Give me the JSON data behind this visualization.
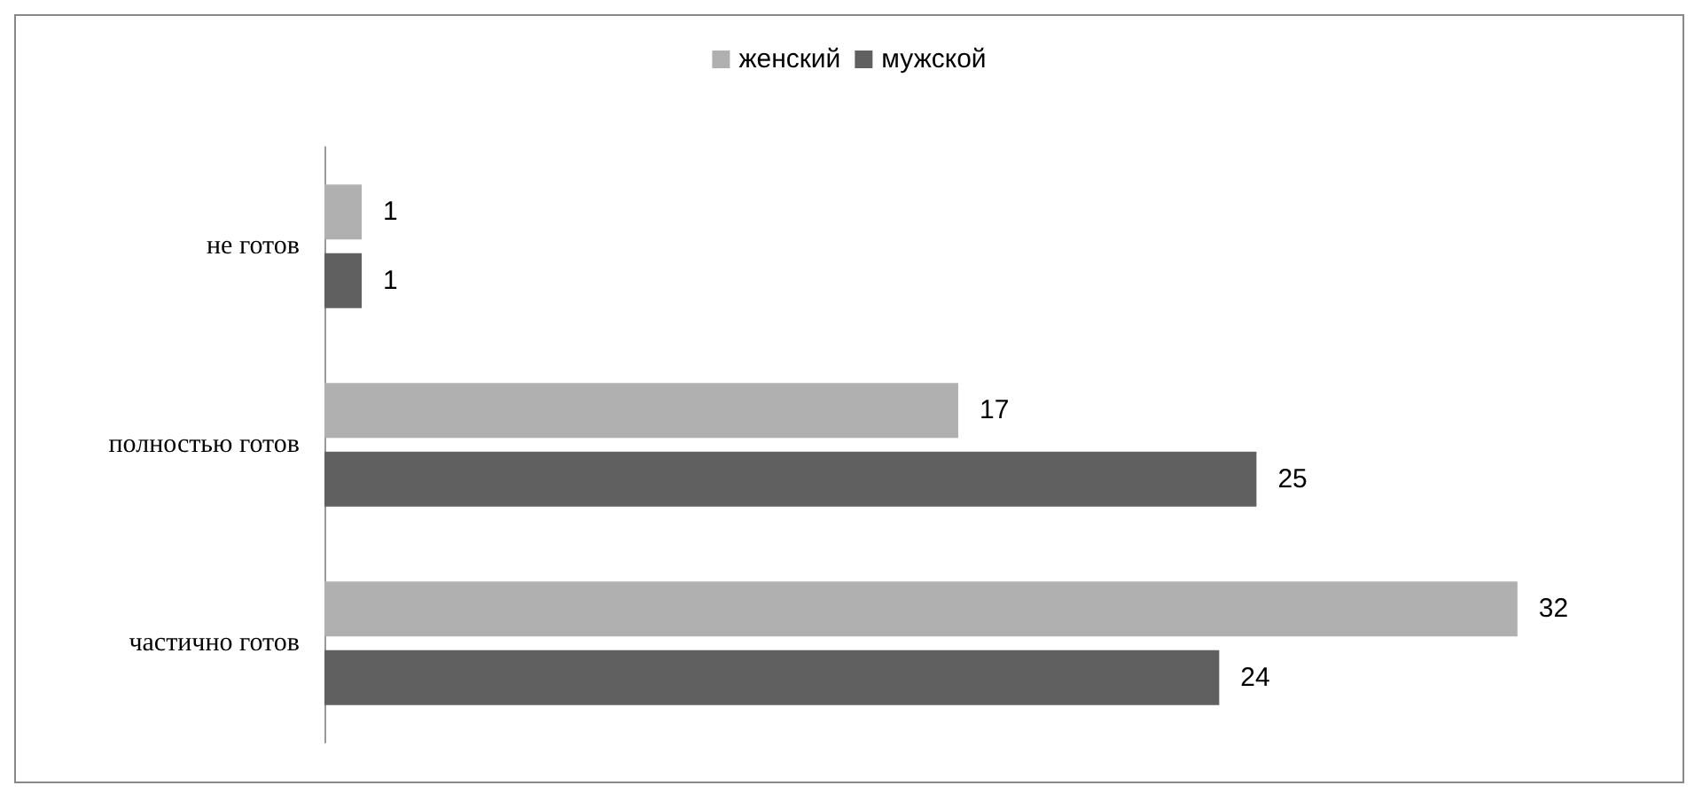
{
  "chart_data": {
    "type": "bar",
    "orientation": "horizontal",
    "categories": [
      "не готов",
      "полностью готов",
      "частично готов"
    ],
    "series": [
      {
        "name": "женский",
        "color": "#b0b0b0",
        "values": [
          1,
          17,
          32
        ]
      },
      {
        "name": "мужской",
        "color": "#606060",
        "values": [
          1,
          25,
          24
        ]
      }
    ],
    "data_labels": true,
    "legend": "top"
  }
}
